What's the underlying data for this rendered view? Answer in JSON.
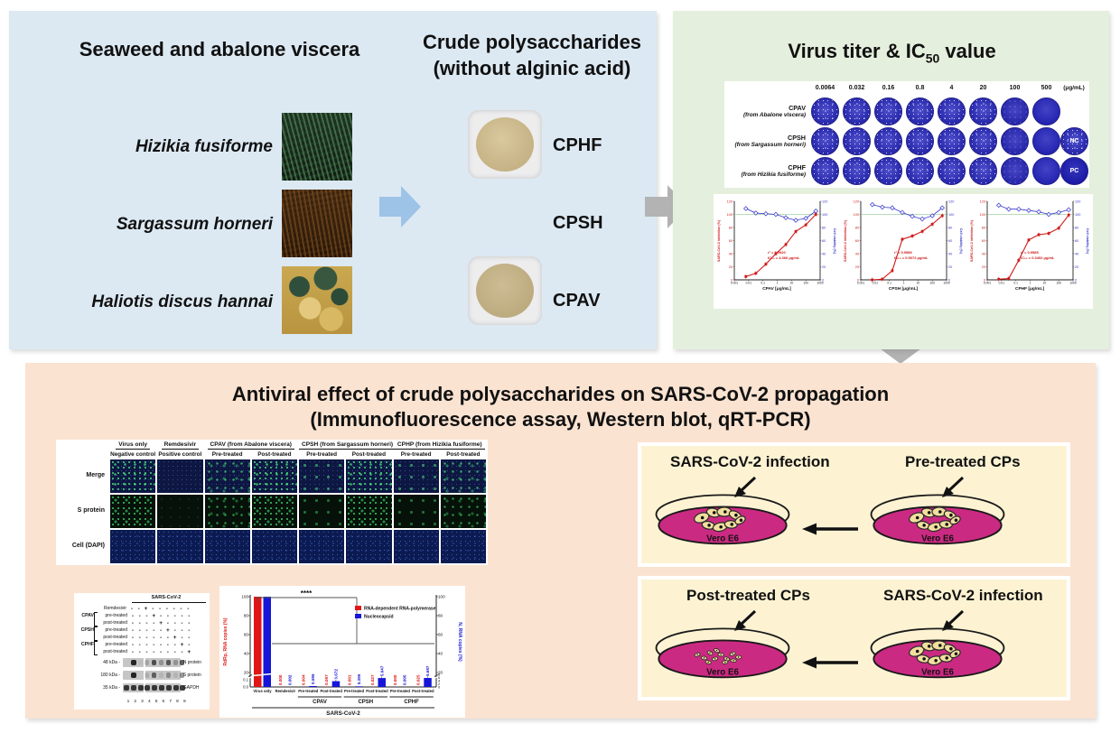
{
  "left_panel": {
    "title": "Seaweed and abalone viscera",
    "product_title_line1": "Crude polysaccharides",
    "product_title_line2": "(without alginic acid)",
    "rows": [
      {
        "species": "Hizikia fusiforme",
        "product": "CPHF"
      },
      {
        "species": "Sargassum horneri",
        "product": "CPSH"
      },
      {
        "species": "Haliotis discus hannai",
        "product": "CPAV"
      }
    ]
  },
  "titer_panel": {
    "title_main": "Virus titer & IC",
    "title_sub": "50",
    "title_tail": " value",
    "plate": {
      "concentrations": [
        "0.0064",
        "0.032",
        "0.16",
        "0.8",
        "4",
        "20",
        "100",
        "500"
      ],
      "unit": "(μg/mL)",
      "rows": [
        {
          "label": "CPAV",
          "origin": "(from Abalone viscera)"
        },
        {
          "label": "CPSH",
          "origin": "(from Sargassum horneri)"
        },
        {
          "label": "CPHF",
          "origin": "(from Hizikia fusiforme)"
        }
      ],
      "nc": "NC",
      "pc": "PC"
    }
  },
  "bottom_panel": {
    "title_line1": "Antiviral effect of crude polysaccharides on SARS-CoV-2 propagation",
    "title_line2": "(Immunofluorescence assay, Western blot, qRT-PCR)",
    "if_assay": {
      "row_labels": [
        "Merge",
        "S protein",
        "Cell (DAPI)"
      ],
      "groups": [
        {
          "label": "Virus only",
          "subs": [
            "Negative control"
          ],
          "signal": [
            "high"
          ]
        },
        {
          "label": "Remdesivir",
          "subs": [
            "Positive control"
          ],
          "signal": [
            "none"
          ]
        },
        {
          "label": "CPAV (from Abalone viscera)",
          "subs": [
            "Pre-treated",
            "Post-treated"
          ],
          "signal": [
            "medium",
            "high"
          ]
        },
        {
          "label": "CPSH (from Sargassum horneri)",
          "subs": [
            "Pre-treated",
            "Post-treated"
          ],
          "signal": [
            "low",
            "high"
          ]
        },
        {
          "label": "CPHP (from Hizikia fusiforme)",
          "subs": [
            "Pre-treated",
            "Post-treated"
          ],
          "signal": [
            "low",
            "medium"
          ]
        }
      ]
    },
    "western_blot": {
      "bracket_label": "SARS-CoV-2",
      "treatment_rows": [
        {
          "group": "",
          "label": "Remdesivir",
          "signs": [
            "-",
            "-",
            "+",
            "-",
            "-",
            "-",
            "-",
            "-",
            "-"
          ]
        },
        {
          "group": "CPAV",
          "label": "pre-treated",
          "signs": [
            "-",
            "-",
            "-",
            "+",
            "-",
            "-",
            "-",
            "-",
            "-"
          ]
        },
        {
          "group": "CPAV",
          "label": "post-treated",
          "signs": [
            "-",
            "-",
            "-",
            "-",
            "+",
            "-",
            "-",
            "-",
            "-"
          ]
        },
        {
          "group": "CPSH",
          "label": "pre-treated",
          "signs": [
            "-",
            "-",
            "-",
            "-",
            "-",
            "+",
            "-",
            "-",
            "-"
          ]
        },
        {
          "group": "CPSH",
          "label": "post-treated",
          "signs": [
            "-",
            "-",
            "-",
            "-",
            "-",
            "-",
            "+",
            "-",
            "-"
          ]
        },
        {
          "group": "CPHF",
          "label": "pre-treated",
          "signs": [
            "-",
            "-",
            "-",
            "-",
            "-",
            "-",
            "-",
            "+",
            "-"
          ]
        },
        {
          "group": "CPHF",
          "label": "post-treated",
          "signs": [
            "-",
            "-",
            "-",
            "-",
            "-",
            "-",
            "-",
            "-",
            "+"
          ]
        }
      ],
      "bands": [
        {
          "kda": "48 kDa",
          "protein": "N protein",
          "lanes": [
            0,
            0.95,
            0.05,
            0.2,
            0.7,
            0.3,
            0.65,
            0.3,
            0.7
          ]
        },
        {
          "kda": "180 kDa",
          "protein": "S protein",
          "lanes": [
            0,
            0.95,
            0,
            0.15,
            0.6,
            0.1,
            0.35,
            0.1,
            0.45
          ]
        },
        {
          "kda": "35 kDa",
          "protein": "GAPDH",
          "lanes": [
            0.85,
            0.85,
            0.85,
            0.85,
            0.85,
            0.85,
            0.85,
            0.85,
            0.85
          ]
        }
      ],
      "lane_numbers": [
        "1",
        "2",
        "3",
        "4",
        "5",
        "6",
        "7",
        "8",
        "9"
      ]
    },
    "diagram_pre": {
      "label_left": "SARS-CoV-2 infection",
      "label_right": "Pre-treated CPs",
      "dish_left": "Vero E6",
      "dish_right": "Vero E6"
    },
    "diagram_post": {
      "label_left": "Post-treated CPs",
      "label_right": "SARS-CoV-2 infection",
      "dish_left": "Vero E6",
      "dish_right": "Vero E6"
    }
  },
  "chart_data": [
    {
      "type": "line",
      "name": "CPAV dose-response",
      "xlabel": "CPAV [μg/mL]",
      "ylabel_left": "SARS-CoV-2 inhibition (%)",
      "ylabel_right": "Cell viability (%)",
      "x": [
        0.0064,
        0.032,
        0.16,
        0.8,
        4,
        20,
        100,
        500
      ],
      "xlim": [
        0.001,
        1000
      ],
      "ylim": [
        0,
        120
      ],
      "series": [
        {
          "name": "SARS-CoV-2 inhibition",
          "color": "#d01818",
          "values": [
            5,
            10,
            24,
            40,
            54,
            74,
            84,
            100
          ]
        },
        {
          "name": "Cell viability",
          "color": "#3333cc",
          "values": [
            109,
            102,
            101,
            100,
            95,
            91,
            94,
            105
          ]
        }
      ],
      "r2": "r² = 0.9920",
      "ic50": "IC₅₀ = 4.366 μg/mL"
    },
    {
      "type": "line",
      "name": "CPSH dose-response",
      "xlabel": "CPSH [μg/mL]",
      "ylabel_left": "SARS-CoV-2 inhibition (%)",
      "ylabel_right": "Cell viability (%)",
      "x": [
        0.0064,
        0.032,
        0.16,
        0.8,
        4,
        20,
        100,
        500
      ],
      "xlim": [
        0.001,
        1000
      ],
      "ylim": [
        0,
        120
      ],
      "series": [
        {
          "name": "SARS-CoV-2 inhibition",
          "color": "#d01818",
          "values": [
            0,
            1,
            14,
            62,
            67,
            74,
            85,
            98
          ]
        },
        {
          "name": "Cell viability",
          "color": "#3333cc",
          "values": [
            115,
            111,
            110,
            103,
            97,
            93,
            98,
            110
          ]
        }
      ],
      "r2": "r² = 0.9586",
      "ic50": "IC₅₀ = 0.5072 μg/mL"
    },
    {
      "type": "line",
      "name": "CPHF dose-response",
      "xlabel": "CPHF [μg/mL]",
      "ylabel_left": "SARS-CoV-2 inhibition (%)",
      "ylabel_right": "Cell viability (%)",
      "x": [
        0.0064,
        0.032,
        0.16,
        0.8,
        4,
        20,
        100,
        500
      ],
      "xlim": [
        0.001,
        1000
      ],
      "ylim": [
        0,
        120
      ],
      "series": [
        {
          "name": "SARS-CoV-2 inhibition",
          "color": "#d01818",
          "values": [
            1,
            2,
            30,
            61,
            69,
            71,
            79,
            99
          ]
        },
        {
          "name": "Cell viability",
          "color": "#3333cc",
          "values": [
            114,
            108,
            108,
            106,
            104,
            100,
            103,
            107
          ]
        }
      ],
      "r2": "r² = 0.9585",
      "ic50": "IC₅₀ = 0.3492 μg/mL"
    },
    {
      "type": "bar",
      "name": "qRT-PCR viral RNA copies",
      "ylabel_left": "RdRp, RNA copies (%)",
      "ylabel_right": "N, RNA copies (%)",
      "categories": [
        "Virus only",
        "Remdesivir",
        "Pre-treated",
        "Post-treated",
        "Pre-treated",
        "Post-treated",
        "Pre-treated",
        "Post-treated"
      ],
      "group_labels": [
        {
          "label": "CPAV",
          "cols": [
            2,
            3
          ]
        },
        {
          "label": "CPSH",
          "cols": [
            4,
            5
          ]
        },
        {
          "label": "CPHF",
          "cols": [
            6,
            7
          ]
        }
      ],
      "bottom_label": "SARS-CoV-2",
      "significance": "****",
      "legend": [
        {
          "name": "RNA-dependent RNA-polymerase",
          "color": "#e01616"
        },
        {
          "name": "Nucleocapsid",
          "color": "#1616d8"
        }
      ],
      "series": [
        {
          "name": "RdRp",
          "color": "#e01616",
          "values": [
            100,
            0.0,
            0.004,
            0.097,
            0.001,
            0.027,
            0.0,
            0.025
          ],
          "labels": [
            "",
            "0.000",
            "0.004",
            "0.097",
            "0.001",
            "0.027",
            "0.000",
            "0.025"
          ]
        },
        {
          "name": "Nucleocapsid",
          "color": "#1616d8",
          "values": [
            100,
            0.002,
            0.586,
            3.672,
            0.399,
            5.647,
            0.005,
            5.687
          ],
          "labels": [
            "",
            "0.002",
            "0.586",
            "3.672",
            "0.399",
            "5.647",
            "0.005",
            "5.687"
          ]
        }
      ],
      "yticks": [
        0,
        20,
        40,
        60,
        80,
        100
      ]
    }
  ],
  "colors": {
    "panel_blue": "#dce9f3",
    "panel_green": "#e5efdd",
    "panel_peach": "#fbe3d1",
    "box_cream": "#fdf3d3",
    "arrow_blue": "#9dc3e6",
    "arrow_gray": "#b3b3b3",
    "arrow_peach": "#f6c9a3",
    "dish_magenta": "#cb2a82"
  }
}
